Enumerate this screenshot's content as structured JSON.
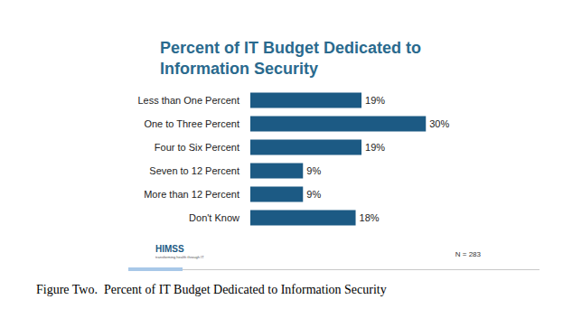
{
  "chart_data": {
    "type": "bar",
    "orientation": "horizontal",
    "title": "Percent of IT Budget Dedicated to Information Security",
    "categories": [
      "Less than One Percent",
      "One to Three Percent",
      "Four to Six Percent",
      "Seven to 12 Percent",
      "More than 12 Percent",
      "Don't Know"
    ],
    "values": [
      19,
      30,
      19,
      9,
      9,
      18
    ],
    "value_labels": [
      "19%",
      "30%",
      "19%",
      "9%",
      "9%",
      "18%"
    ],
    "color": "#1c5a84",
    "xlim": [
      0,
      40
    ],
    "grid": false,
    "data_labels": true,
    "tick_labels": "y",
    "annotations": [
      "N = 283",
      "HIMSS",
      "transforming health through IT"
    ],
    "caption": "Figure Two.  Percent of IT Budget Dedicated to Information Security"
  }
}
